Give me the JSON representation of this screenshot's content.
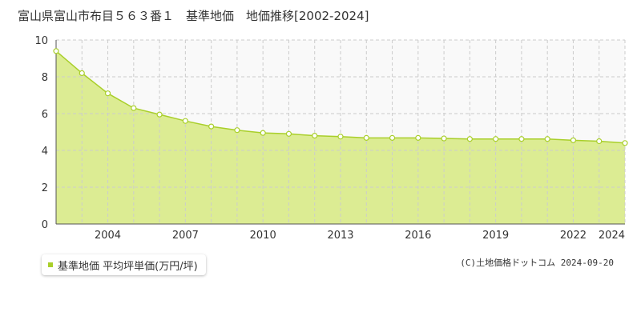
{
  "chart_data": {
    "type": "area",
    "title": "富山県富山市布目５６３番１　基準地価　地価推移[2002-2024]",
    "xlim": [
      2002,
      2024
    ],
    "ylim": [
      0,
      10
    ],
    "x_ticks": [
      2004,
      2007,
      2010,
      2013,
      2016,
      2019,
      2022,
      2024
    ],
    "y_ticks": [
      0,
      2,
      4,
      6,
      8,
      10
    ],
    "grid": true,
    "legend_position": "bottom-left",
    "series": [
      {
        "name": "基準地価 平均坪単価(万円/坪)",
        "color": "#a9cf2a",
        "fill": "#dcec93",
        "x": [
          2002,
          2003,
          2004,
          2005,
          2006,
          2007,
          2008,
          2009,
          2010,
          2011,
          2012,
          2013,
          2014,
          2015,
          2016,
          2017,
          2018,
          2019,
          2020,
          2021,
          2022,
          2023,
          2024
        ],
        "values": [
          9.4,
          8.2,
          7.1,
          6.3,
          5.95,
          5.6,
          5.3,
          5.1,
          4.95,
          4.9,
          4.8,
          4.75,
          4.68,
          4.68,
          4.68,
          4.65,
          4.62,
          4.62,
          4.62,
          4.62,
          4.55,
          4.5,
          4.4
        ]
      }
    ]
  },
  "copyright": "(C)土地価格ドットコム 2024-09-20"
}
